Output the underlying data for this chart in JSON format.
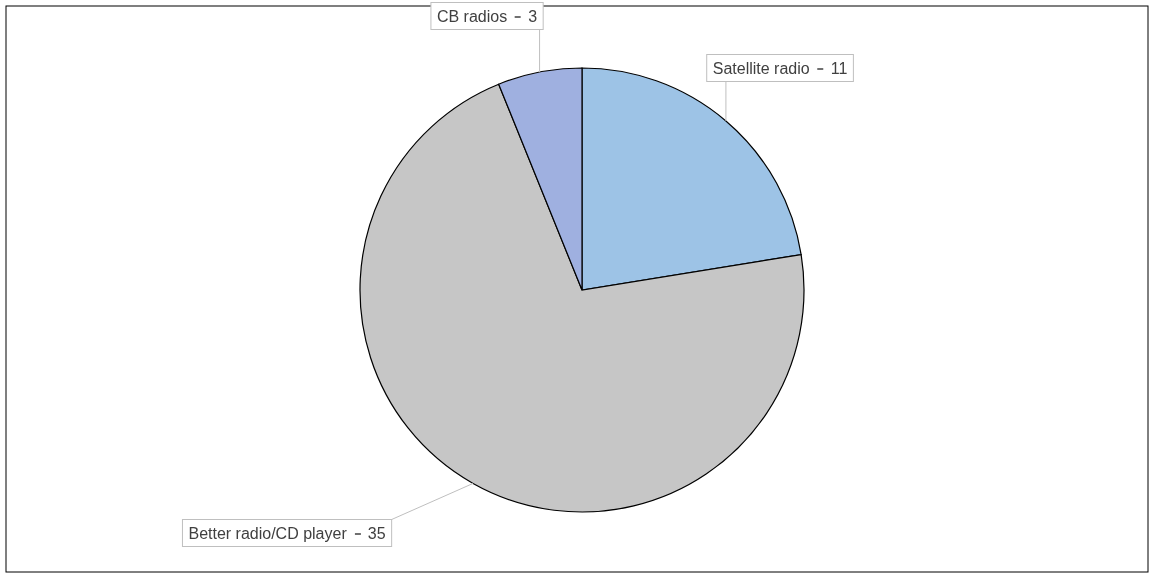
{
  "chart_data": {
    "type": "pie",
    "categories": [
      "Satellite radio",
      "Better radio/CD player",
      "CB radios"
    ],
    "values": [
      11,
      35,
      3
    ],
    "colors": [
      "#9dc3e6",
      "#c6c6c6",
      "#9fb0e0"
    ],
    "data_labels": true
  }
}
